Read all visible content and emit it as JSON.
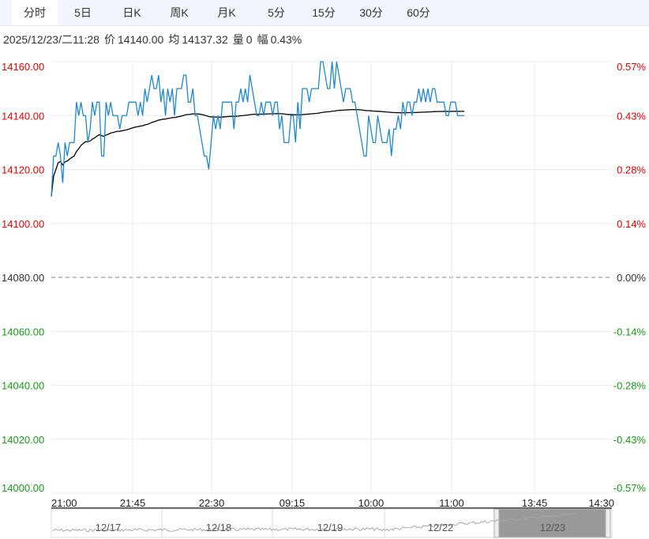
{
  "tabs": [
    "分时",
    "5日",
    "日K",
    "周K",
    "月K",
    "5分",
    "15分",
    "30分",
    "60分"
  ],
  "active_tab": "分时",
  "info": {
    "datetime": "2025/12/23/二11:28",
    "price_label": "价",
    "price": "14140.00",
    "avg_label": "均",
    "avg": "14137.32",
    "vol_label": "量",
    "vol": "0",
    "chg_label": "幅",
    "chg": "0.43%"
  },
  "colors": {
    "price_line": "#1e88d0",
    "avg_line": "#000000",
    "up": "#e60000",
    "down": "#1a9a1a",
    "base": "#333333"
  },
  "navigator": {
    "dates": [
      "12/17",
      "12/18",
      "12/19",
      "12/22",
      "12/23"
    ],
    "selected": "12/23"
  },
  "chart_data": {
    "type": "line",
    "base_price": 14080,
    "ylim": [
      14000,
      14160
    ],
    "y_ticks": [
      "14160.00",
      "14140.00",
      "14120.00",
      "14100.00",
      "14080.00",
      "14060.00",
      "14040.00",
      "14020.00",
      "14000.00"
    ],
    "y_tick_values": [
      14160,
      14140,
      14120,
      14100,
      14080,
      14060,
      14040,
      14020,
      14000
    ],
    "pct_ticks": [
      "0.57%",
      "0.43%",
      "0.28%",
      "0.14%",
      "0.00%",
      "-0.14%",
      "-0.28%",
      "-0.43%",
      "-0.57%"
    ],
    "x_ticks": [
      "21:00",
      "21:45",
      "22:30",
      "09:15",
      "10:00",
      "11:00",
      "13:45",
      "14:30"
    ],
    "elapsed_fraction": 0.737,
    "series": [
      {
        "name": "价",
        "values": [
          14110,
          14125,
          14125,
          14130,
          14125,
          14115,
          14130,
          14125,
          14130,
          14130,
          14130,
          14145,
          14140,
          14145,
          14140,
          14140,
          14130,
          14135,
          14145,
          14140,
          14145,
          14145,
          14125,
          14125,
          14145,
          14140,
          14145,
          14140,
          14140,
          14140,
          14135,
          14140,
          14140,
          14140,
          14145,
          14145,
          14145,
          14145,
          14140,
          14145,
          14140,
          14150,
          14145,
          14150,
          14155,
          14150,
          14150,
          14155,
          14145,
          14150,
          14140,
          14150,
          14145,
          14150,
          14140,
          14150,
          14150,
          14150,
          14155,
          14155,
          14145,
          14145,
          14150,
          14140,
          14140,
          14135,
          14130,
          14125,
          14125,
          14120,
          14130,
          14140,
          14135,
          14140,
          14135,
          14145,
          14145,
          14145,
          14145,
          14145,
          14135,
          14145,
          14145,
          14150,
          14145,
          14150,
          14145,
          14155,
          14150,
          14145,
          14140,
          14140,
          14145,
          14140,
          14145,
          14145,
          14145,
          14140,
          14145,
          14145,
          14135,
          14140,
          14130,
          14130,
          14130,
          14140,
          14140,
          14130,
          14145,
          14135,
          14150,
          14150,
          14150,
          14145,
          14150,
          14150,
          14150,
          14150,
          14160,
          14160,
          14155,
          14150,
          14150,
          14160,
          14150,
          14160,
          14155,
          14150,
          14145,
          14150,
          14150,
          14150,
          14145,
          14145,
          14140,
          14135,
          14130,
          14125,
          14125,
          14140,
          14135,
          14130,
          14130,
          14140,
          14135,
          14130,
          14130,
          14130,
          14135,
          14125,
          14135,
          14135,
          14140,
          14135,
          14145,
          14140,
          14145,
          14145,
          14140,
          14145,
          14145,
          14150,
          14145,
          14150,
          14145,
          14150,
          14145,
          14150,
          14150,
          14145,
          14145,
          14145,
          14145,
          14140,
          14140,
          14145,
          14145,
          14145,
          14140,
          14140,
          14140,
          14140
        ]
      },
      {
        "name": "均",
        "values": "cumulative-average-of-price"
      }
    ]
  }
}
